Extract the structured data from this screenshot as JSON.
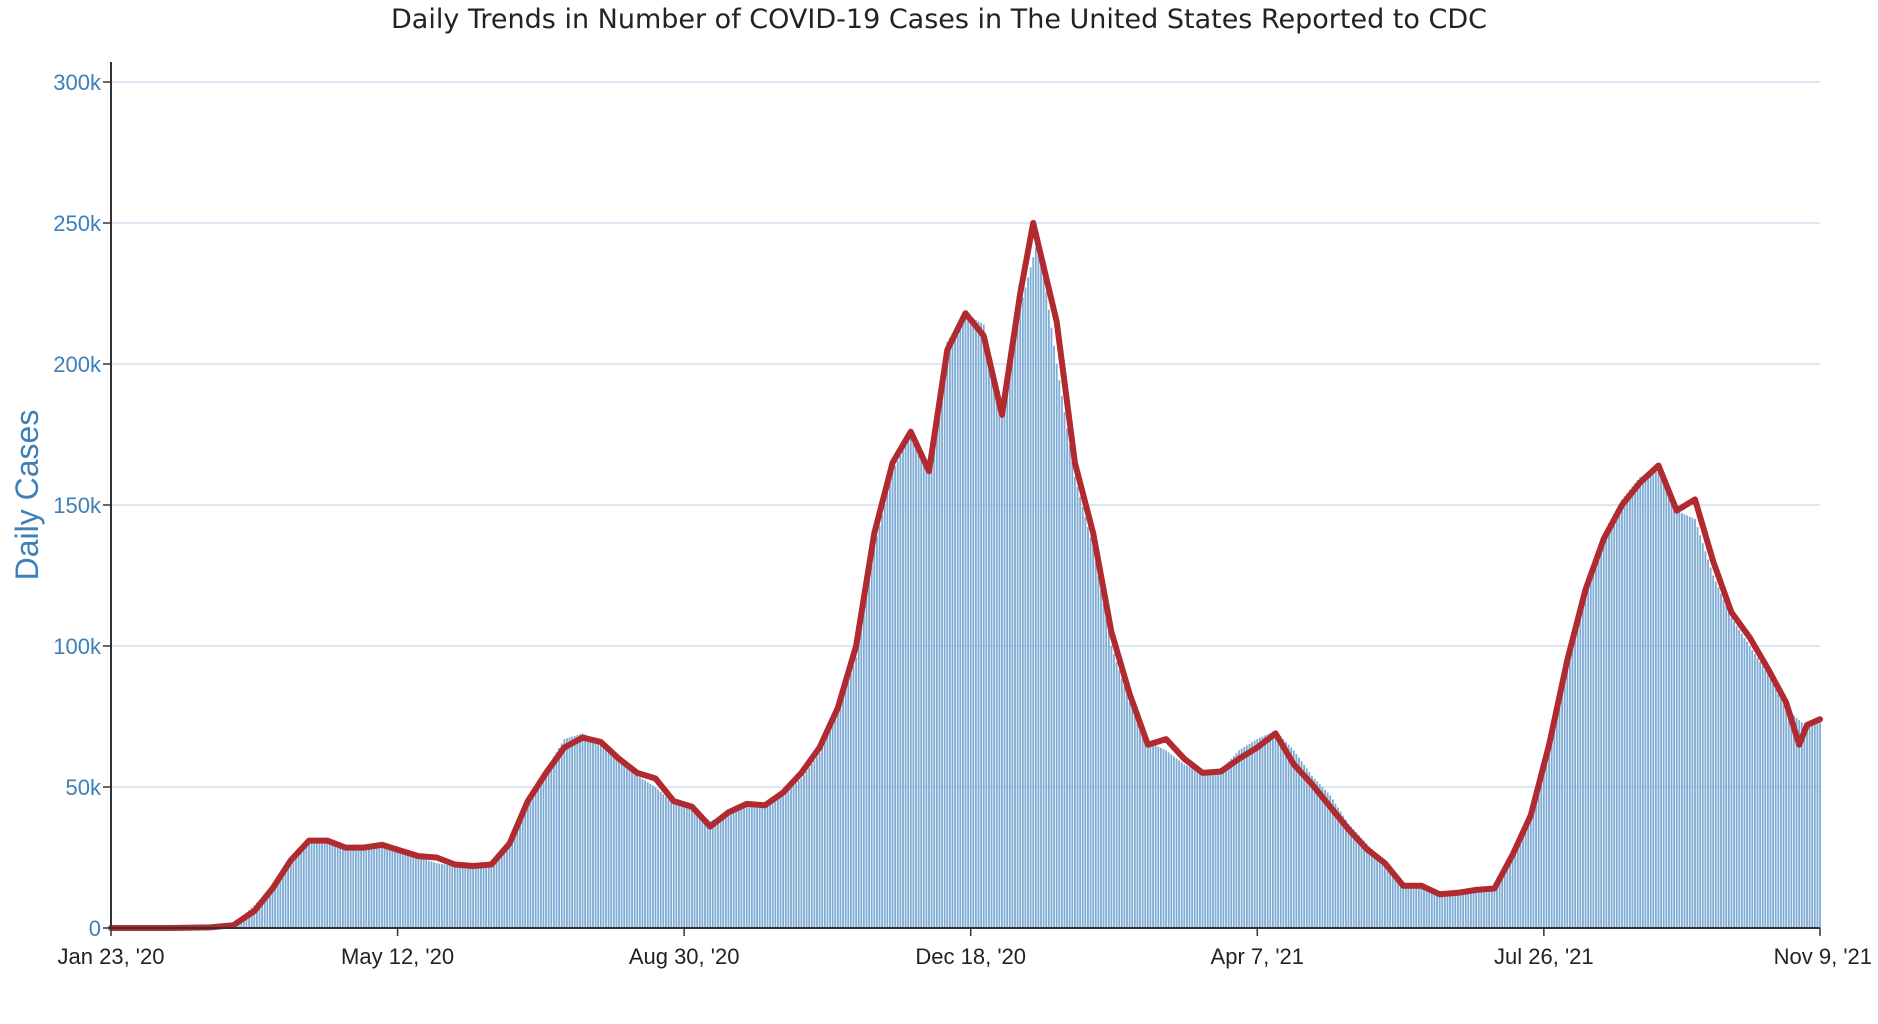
{
  "chart_data": {
    "type": "bar",
    "title": "Daily Trends in Number of COVID-19 Cases in The United States Reported to CDC",
    "ylabel": "Daily Cases",
    "xlabel": "",
    "ylim": [
      0,
      300000
    ],
    "yticks": [
      0,
      50000,
      100000,
      150000,
      200000,
      250000,
      300000
    ],
    "ytick_labels": [
      "0",
      "50k",
      "100k",
      "150k",
      "200k",
      "250k",
      "300k"
    ],
    "xticks": [
      "2020-01-23",
      "2020-05-12",
      "2020-08-30",
      "2020-12-18",
      "2021-04-07",
      "2021-07-26",
      "2021-11-09"
    ],
    "xtick_labels": [
      "Jan 23, '20",
      "May 12, '20",
      "Aug 30, '20",
      "Dec 18, '20",
      "Apr 7, '21",
      "Jul 26, '21",
      "Nov 9, '21"
    ],
    "xlim": [
      "2020-01-23",
      "2021-11-09"
    ],
    "grid": "horizontal",
    "legend": "none",
    "colors": {
      "bars": "#7eabd4",
      "bar_edge": "#5a8fc4",
      "line": "#b02a30",
      "grid": "#cfdff0",
      "axis": "#333333"
    },
    "series": [
      {
        "type": "bar",
        "description_key": "daily",
        "points": [
          [
            "2020-01-23",
            0
          ],
          [
            "2020-02-15",
            0
          ],
          [
            "2020-03-01",
            300
          ],
          [
            "2020-03-10",
            1500
          ],
          [
            "2020-03-18",
            8000
          ],
          [
            "2020-03-25",
            15000
          ],
          [
            "2020-04-01",
            24000
          ],
          [
            "2020-04-08",
            31000
          ],
          [
            "2020-04-15",
            31000
          ],
          [
            "2020-04-22",
            29000
          ],
          [
            "2020-04-29",
            28000
          ],
          [
            "2020-05-06",
            29000
          ],
          [
            "2020-05-13",
            27000
          ],
          [
            "2020-05-20",
            25000
          ],
          [
            "2020-05-27",
            23000
          ],
          [
            "2020-06-03",
            22000
          ],
          [
            "2020-06-10",
            21000
          ],
          [
            "2020-06-17",
            22000
          ],
          [
            "2020-06-24",
            30000
          ],
          [
            "2020-07-01",
            45000
          ],
          [
            "2020-07-08",
            56000
          ],
          [
            "2020-07-15",
            67000
          ],
          [
            "2020-07-22",
            69000
          ],
          [
            "2020-07-29",
            66000
          ],
          [
            "2020-08-05",
            60000
          ],
          [
            "2020-08-12",
            54000
          ],
          [
            "2020-08-19",
            50000
          ],
          [
            "2020-08-26",
            44000
          ],
          [
            "2020-09-02",
            42000
          ],
          [
            "2020-09-09",
            38000
          ],
          [
            "2020-09-16",
            40000
          ],
          [
            "2020-09-23",
            43000
          ],
          [
            "2020-09-30",
            44000
          ],
          [
            "2020-10-07",
            47000
          ],
          [
            "2020-10-14",
            53000
          ],
          [
            "2020-10-21",
            62000
          ],
          [
            "2020-10-28",
            76000
          ],
          [
            "2020-11-04",
            96000
          ],
          [
            "2020-11-11",
            135000
          ],
          [
            "2020-11-18",
            162000
          ],
          [
            "2020-11-25",
            175000
          ],
          [
            "2020-12-02",
            165000
          ],
          [
            "2020-12-09",
            208000
          ],
          [
            "2020-12-16",
            218000
          ],
          [
            "2020-12-23",
            214000
          ],
          [
            "2020-12-30",
            185000
          ],
          [
            "2021-01-06",
            220000
          ],
          [
            "2021-01-13",
            245000
          ],
          [
            "2021-01-20",
            200000
          ],
          [
            "2021-01-27",
            160000
          ],
          [
            "2021-02-03",
            135000
          ],
          [
            "2021-02-10",
            100000
          ],
          [
            "2021-02-17",
            80000
          ],
          [
            "2021-02-24",
            66000
          ],
          [
            "2021-03-03",
            63000
          ],
          [
            "2021-03-10",
            58000
          ],
          [
            "2021-03-17",
            55000
          ],
          [
            "2021-03-24",
            56000
          ],
          [
            "2021-03-31",
            63000
          ],
          [
            "2021-04-07",
            67000
          ],
          [
            "2021-04-14",
            70000
          ],
          [
            "2021-04-21",
            63000
          ],
          [
            "2021-04-28",
            54000
          ],
          [
            "2021-05-05",
            47000
          ],
          [
            "2021-05-12",
            37000
          ],
          [
            "2021-05-19",
            30000
          ],
          [
            "2021-05-26",
            23000
          ],
          [
            "2021-06-02",
            15000
          ],
          [
            "2021-06-09",
            14000
          ],
          [
            "2021-06-16",
            12000
          ],
          [
            "2021-06-23",
            12000
          ],
          [
            "2021-06-30",
            13000
          ],
          [
            "2021-07-07",
            15000
          ],
          [
            "2021-07-14",
            27000
          ],
          [
            "2021-07-21",
            42000
          ],
          [
            "2021-07-28",
            67000
          ],
          [
            "2021-08-04",
            98000
          ],
          [
            "2021-08-11",
            122000
          ],
          [
            "2021-08-18",
            140000
          ],
          [
            "2021-08-25",
            152000
          ],
          [
            "2021-09-01",
            160000
          ],
          [
            "2021-09-08",
            162000
          ],
          [
            "2021-09-15",
            148000
          ],
          [
            "2021-09-22",
            145000
          ],
          [
            "2021-09-29",
            125000
          ],
          [
            "2021-10-06",
            110000
          ],
          [
            "2021-10-13",
            100000
          ],
          [
            "2021-10-20",
            90000
          ],
          [
            "2021-10-27",
            78000
          ],
          [
            "2021-11-03",
            72000
          ],
          [
            "2021-11-09",
            74000
          ]
        ]
      },
      {
        "type": "line",
        "description_key": "7-day average",
        "points": [
          [
            "2020-01-23",
            0
          ],
          [
            "2020-02-15",
            0
          ],
          [
            "2020-03-01",
            200
          ],
          [
            "2020-03-10",
            1000
          ],
          [
            "2020-03-18",
            6000
          ],
          [
            "2020-03-25",
            14000
          ],
          [
            "2020-04-01",
            24000
          ],
          [
            "2020-04-08",
            31000
          ],
          [
            "2020-04-15",
            31000
          ],
          [
            "2020-04-22",
            28500
          ],
          [
            "2020-04-29",
            28500
          ],
          [
            "2020-05-06",
            29500
          ],
          [
            "2020-05-13",
            27500
          ],
          [
            "2020-05-20",
            25500
          ],
          [
            "2020-05-27",
            25000
          ],
          [
            "2020-06-03",
            22500
          ],
          [
            "2020-06-10",
            22000
          ],
          [
            "2020-06-17",
            22500
          ],
          [
            "2020-06-24",
            30000
          ],
          [
            "2020-07-01",
            45000
          ],
          [
            "2020-07-08",
            55000
          ],
          [
            "2020-07-15",
            64000
          ],
          [
            "2020-07-22",
            67500
          ],
          [
            "2020-07-29",
            66000
          ],
          [
            "2020-08-05",
            60000
          ],
          [
            "2020-08-12",
            55000
          ],
          [
            "2020-08-19",
            53000
          ],
          [
            "2020-08-26",
            45000
          ],
          [
            "2020-09-02",
            43000
          ],
          [
            "2020-09-09",
            36000
          ],
          [
            "2020-09-16",
            41000
          ],
          [
            "2020-09-23",
            44000
          ],
          [
            "2020-09-30",
            43500
          ],
          [
            "2020-10-07",
            48000
          ],
          [
            "2020-10-14",
            55000
          ],
          [
            "2020-10-21",
            64000
          ],
          [
            "2020-10-28",
            78000
          ],
          [
            "2020-11-04",
            100000
          ],
          [
            "2020-11-11",
            140000
          ],
          [
            "2020-11-18",
            165000
          ],
          [
            "2020-11-25",
            176000
          ],
          [
            "2020-12-02",
            162000
          ],
          [
            "2020-12-09",
            205000
          ],
          [
            "2020-12-16",
            218000
          ],
          [
            "2020-12-23",
            210000
          ],
          [
            "2020-12-30",
            182000
          ],
          [
            "2021-01-06",
            225000
          ],
          [
            "2021-01-11",
            250000
          ],
          [
            "2021-01-20",
            215000
          ],
          [
            "2021-01-27",
            165000
          ],
          [
            "2021-02-03",
            140000
          ],
          [
            "2021-02-10",
            105000
          ],
          [
            "2021-02-17",
            83000
          ],
          [
            "2021-02-24",
            65000
          ],
          [
            "2021-03-03",
            67000
          ],
          [
            "2021-03-10",
            60000
          ],
          [
            "2021-03-17",
            55000
          ],
          [
            "2021-03-24",
            55500
          ],
          [
            "2021-03-31",
            60000
          ],
          [
            "2021-04-07",
            64000
          ],
          [
            "2021-04-14",
            69000
          ],
          [
            "2021-04-21",
            58000
          ],
          [
            "2021-04-28",
            51000
          ],
          [
            "2021-05-05",
            43000
          ],
          [
            "2021-05-12",
            35000
          ],
          [
            "2021-05-19",
            28000
          ],
          [
            "2021-05-26",
            23000
          ],
          [
            "2021-06-02",
            15000
          ],
          [
            "2021-06-09",
            15000
          ],
          [
            "2021-06-16",
            12000
          ],
          [
            "2021-06-23",
            12500
          ],
          [
            "2021-06-30",
            13500
          ],
          [
            "2021-07-07",
            14000
          ],
          [
            "2021-07-14",
            26000
          ],
          [
            "2021-07-21",
            40000
          ],
          [
            "2021-07-28",
            65000
          ],
          [
            "2021-08-04",
            95000
          ],
          [
            "2021-08-11",
            120000
          ],
          [
            "2021-08-18",
            138000
          ],
          [
            "2021-08-25",
            150000
          ],
          [
            "2021-09-01",
            158000
          ],
          [
            "2021-09-08",
            164000
          ],
          [
            "2021-09-15",
            148000
          ],
          [
            "2021-09-22",
            152000
          ],
          [
            "2021-09-29",
            130000
          ],
          [
            "2021-10-06",
            112000
          ],
          [
            "2021-10-13",
            103000
          ],
          [
            "2021-10-20",
            92000
          ],
          [
            "2021-10-27",
            80000
          ],
          [
            "2021-11-01",
            65000
          ],
          [
            "2021-11-04",
            72000
          ],
          [
            "2021-11-09",
            74000
          ]
        ]
      }
    ]
  }
}
